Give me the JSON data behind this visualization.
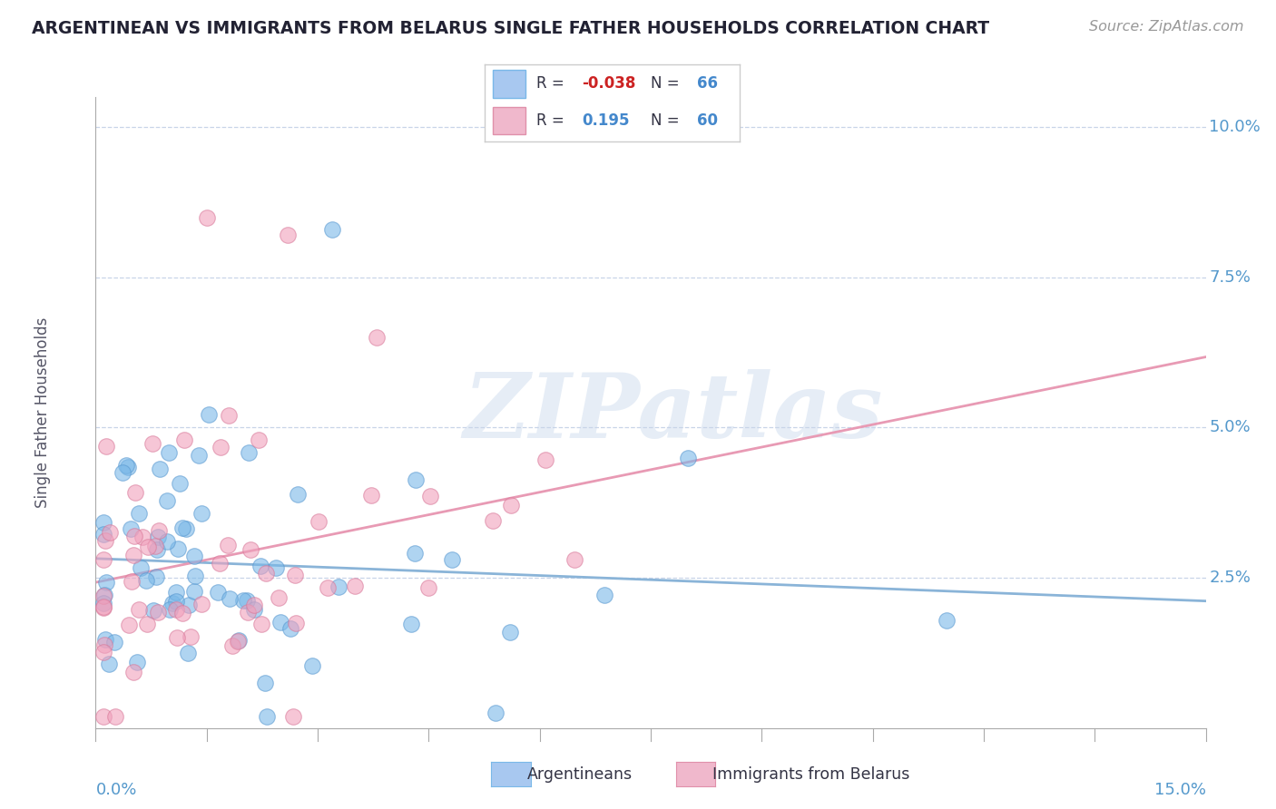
{
  "title": "ARGENTINEAN VS IMMIGRANTS FROM BELARUS SINGLE FATHER HOUSEHOLDS CORRELATION CHART",
  "source": "Source: ZipAtlas.com",
  "ylabel": "Single Father Households",
  "series1_name": "Argentineans",
  "series1_color": "#7ab8e8",
  "series1_edge": "#5898d0",
  "series1_R": -0.038,
  "series1_N": 66,
  "series2_name": "Immigrants from Belarus",
  "series2_color": "#f0a0bc",
  "series2_edge": "#d87898",
  "series2_R": 0.195,
  "series2_N": 60,
  "xmin": 0.0,
  "xmax": 0.15,
  "ymin": 0.0,
  "ymax": 0.105,
  "ytick_vals": [
    0.025,
    0.05,
    0.075,
    0.1
  ],
  "ytick_labels": [
    "2.5%",
    "5.0%",
    "7.5%",
    "10.0%"
  ],
  "xtick_vals": [
    0.0,
    0.015,
    0.03,
    0.045,
    0.06,
    0.075,
    0.09,
    0.105,
    0.12,
    0.135,
    0.15
  ],
  "background_color": "#ffffff",
  "grid_color": "#c8d4e8",
  "trendline1_color": "#8ab4d8",
  "trendline2_color": "#e89ab4",
  "watermark_text": "ZIPatlas",
  "axis_color": "#aaaaaa",
  "right_label_color": "#5599cc",
  "title_color": "#222233",
  "legend_box_color": "#cccccc",
  "leg1_fill": "#a8c8f0",
  "leg1_edge": "#7ab8e8",
  "leg2_fill": "#f0b8cc",
  "leg2_edge": "#e090aa",
  "leg_r1_color": "#cc2222",
  "leg_r2_color": "#4488cc",
  "leg_n_color": "#4488cc",
  "leg_label_color": "#333344"
}
